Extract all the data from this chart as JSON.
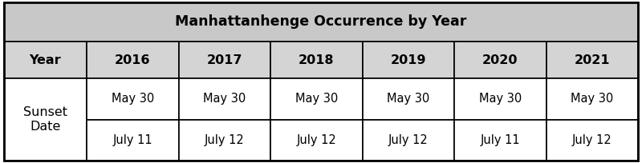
{
  "title": "Manhattanhenge Occurrence by Year",
  "years": [
    "Year",
    "2016",
    "2017",
    "2018",
    "2019",
    "2020",
    "2021"
  ],
  "row_label": "Sunset\nDate",
  "date1": [
    "May 30",
    "May 30",
    "May 30",
    "May 30",
    "May 30",
    "May 30"
  ],
  "date2": [
    "July 11",
    "July 12",
    "July 12",
    "July 12",
    "July 11",
    "July 12"
  ],
  "title_bg": "#c8c8c8",
  "year_row_bg": "#d4d4d4",
  "row_header_bg": "#ffffff",
  "data_bg": "#ffffff",
  "border_color": "#000000",
  "title_fontsize": 12.5,
  "header_fontsize": 11.5,
  "data_fontsize": 10.5,
  "fig_width": 8.0,
  "fig_height": 2.04,
  "dpi": 100
}
